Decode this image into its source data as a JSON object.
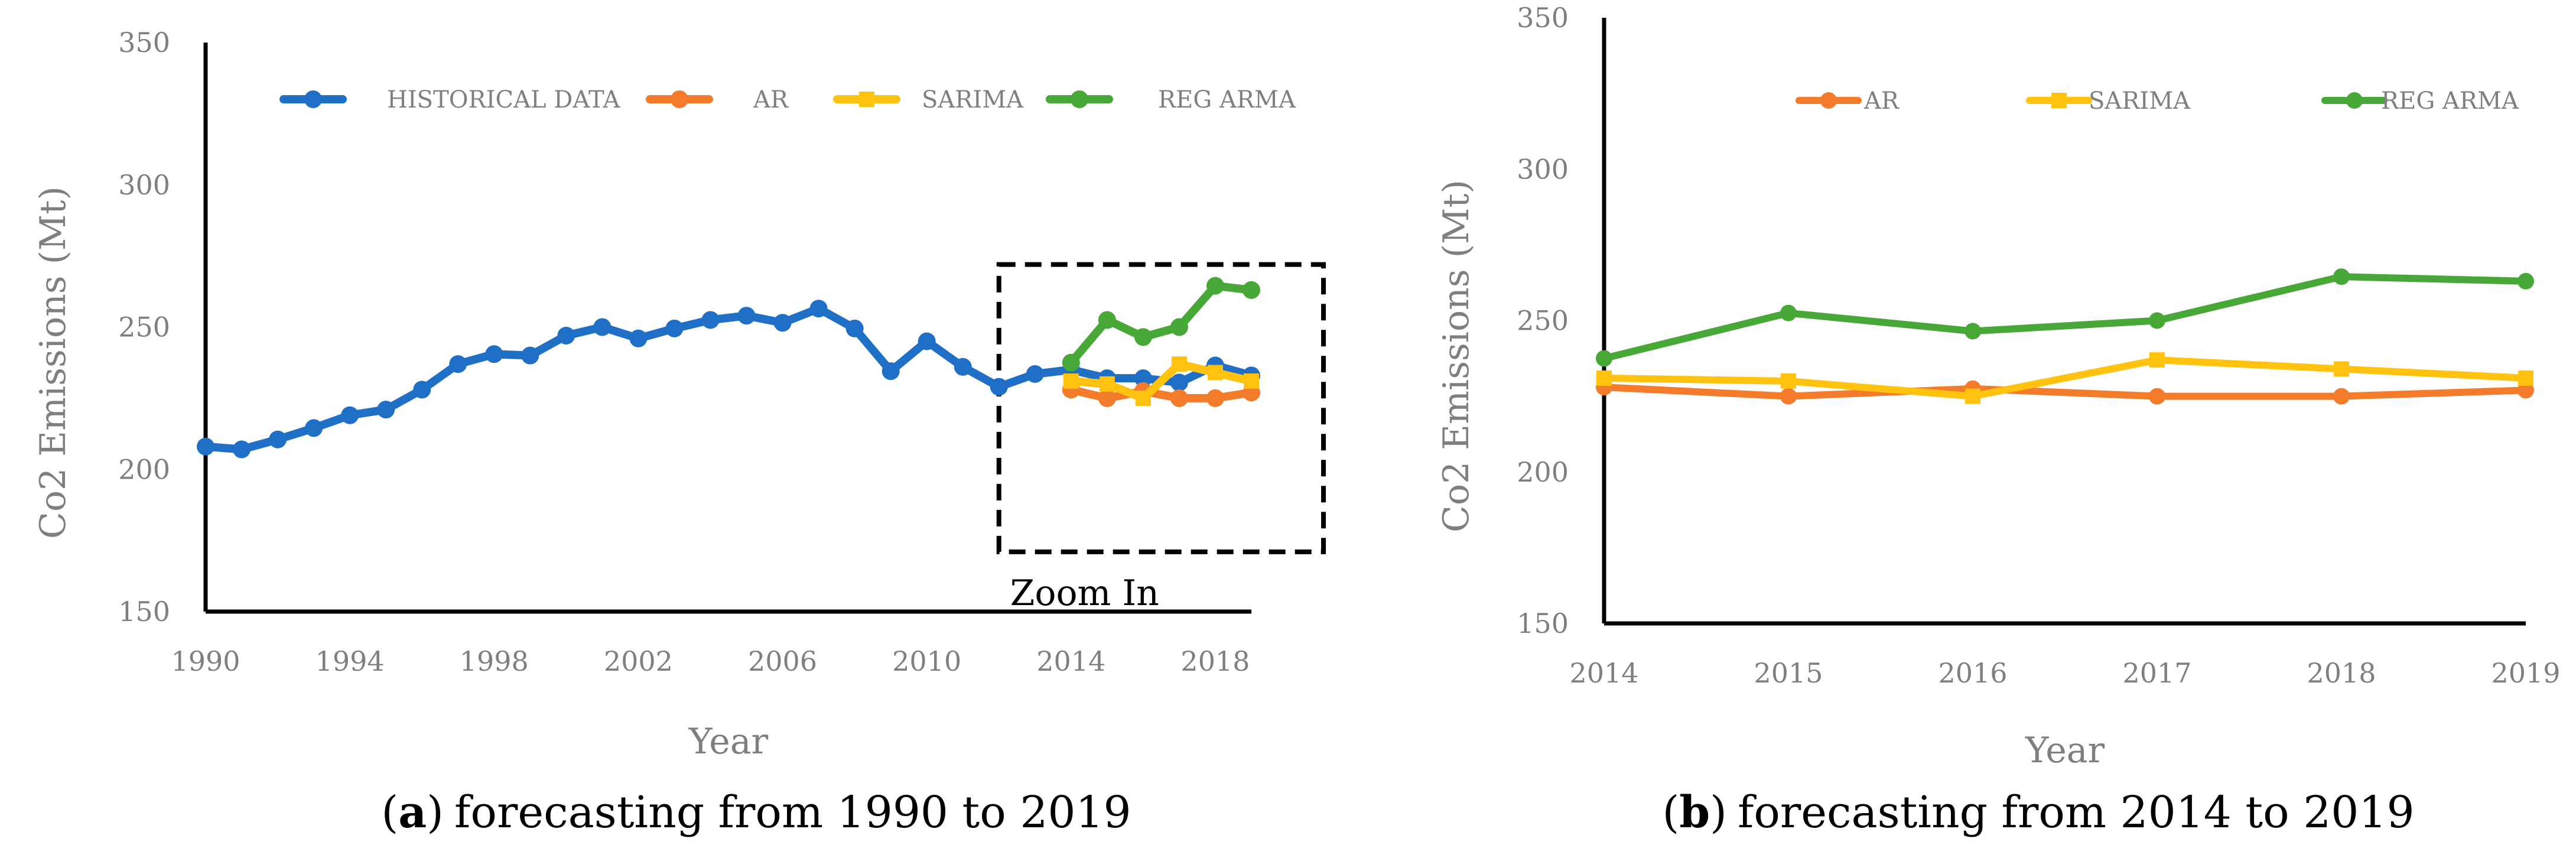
{
  "chart_data": [
    {
      "id": "a",
      "type": "line",
      "xlabel": "Year",
      "ylabel": "Co2 Emissions (Mt)",
      "ylim": [
        150,
        350
      ],
      "yticks": [
        150,
        200,
        250,
        300,
        350
      ],
      "xlim": [
        1990,
        2019
      ],
      "xticks": [
        1990,
        1994,
        1998,
        2002,
        2006,
        2010,
        2014,
        2018
      ],
      "caption_letter": "a",
      "caption_text": "forecasting from 1990 to 2019",
      "caption_open": "(",
      "caption_close": ")",
      "annotation": "Zoom In",
      "annotation_box": {
        "x": [
          2012,
          2021
        ],
        "y": [
          171,
          272
        ]
      },
      "legend_position": "top",
      "series": [
        {
          "name": "HISTORICAL DATA",
          "color": "#1f6fc6",
          "marker": "circle",
          "x": [
            1990,
            1991,
            1992,
            1993,
            1994,
            1995,
            1996,
            1997,
            1998,
            1999,
            2000,
            2001,
            2002,
            2003,
            2004,
            2005,
            2006,
            2007,
            2008,
            2009,
            2010,
            2011,
            2012,
            2013,
            2014,
            2015,
            2016,
            2017,
            2018,
            2019
          ],
          "values": [
            208,
            207,
            210.5,
            214.5,
            219,
            221,
            228,
            237,
            240.5,
            240,
            247,
            250,
            246,
            249.5,
            252.5,
            254,
            251.5,
            256.5,
            249.5,
            234.5,
            245,
            236,
            229,
            233.5,
            235,
            232,
            232,
            230.5,
            236.5,
            233
          ]
        },
        {
          "name": "AR",
          "color": "#f47b2a",
          "marker": "circle",
          "x": [
            2014,
            2015,
            2016,
            2017,
            2018,
            2019
          ],
          "values": [
            228,
            225,
            227.5,
            225,
            225,
            227
          ]
        },
        {
          "name": "SARIMA",
          "color": "#ffc20e",
          "marker": "square",
          "x": [
            2014,
            2015,
            2016,
            2017,
            2018,
            2019
          ],
          "values": [
            231,
            230,
            225,
            237,
            234,
            231
          ]
        },
        {
          "name": "REG ARMA",
          "color": "#47a838",
          "marker": "circle",
          "x": [
            2014,
            2015,
            2016,
            2017,
            2018,
            2019
          ],
          "values": [
            237.5,
            252.5,
            246.5,
            250,
            264.5,
            263
          ]
        }
      ]
    },
    {
      "id": "b",
      "type": "line",
      "xlabel": "Year",
      "ylabel": "Co2 Emissions (Mt)",
      "ylim": [
        150,
        350
      ],
      "yticks": [
        150,
        200,
        250,
        300,
        350
      ],
      "xlim": [
        2014,
        2019
      ],
      "xticks": [
        2014,
        2015,
        2016,
        2017,
        2018,
        2019
      ],
      "caption_letter": "b",
      "caption_text": "forecasting from 2014 to 2019",
      "caption_open": "(",
      "caption_close": ")",
      "legend_position": "top",
      "series": [
        {
          "name": "AR",
          "color": "#f47b2a",
          "marker": "circle",
          "x": [
            2014,
            2015,
            2016,
            2017,
            2018,
            2019
          ],
          "values": [
            228,
            225,
            227.5,
            225,
            225,
            227
          ]
        },
        {
          "name": "SARIMA",
          "color": "#ffc20e",
          "marker": "square",
          "x": [
            2014,
            2015,
            2016,
            2017,
            2018,
            2019
          ],
          "values": [
            231,
            230,
            225,
            237,
            234,
            231
          ]
        },
        {
          "name": "REG ARMA",
          "color": "#47a838",
          "marker": "circle",
          "x": [
            2014,
            2015,
            2016,
            2017,
            2018,
            2019
          ],
          "values": [
            237.5,
            252.5,
            246.5,
            250,
            264.5,
            263
          ]
        }
      ]
    }
  ]
}
